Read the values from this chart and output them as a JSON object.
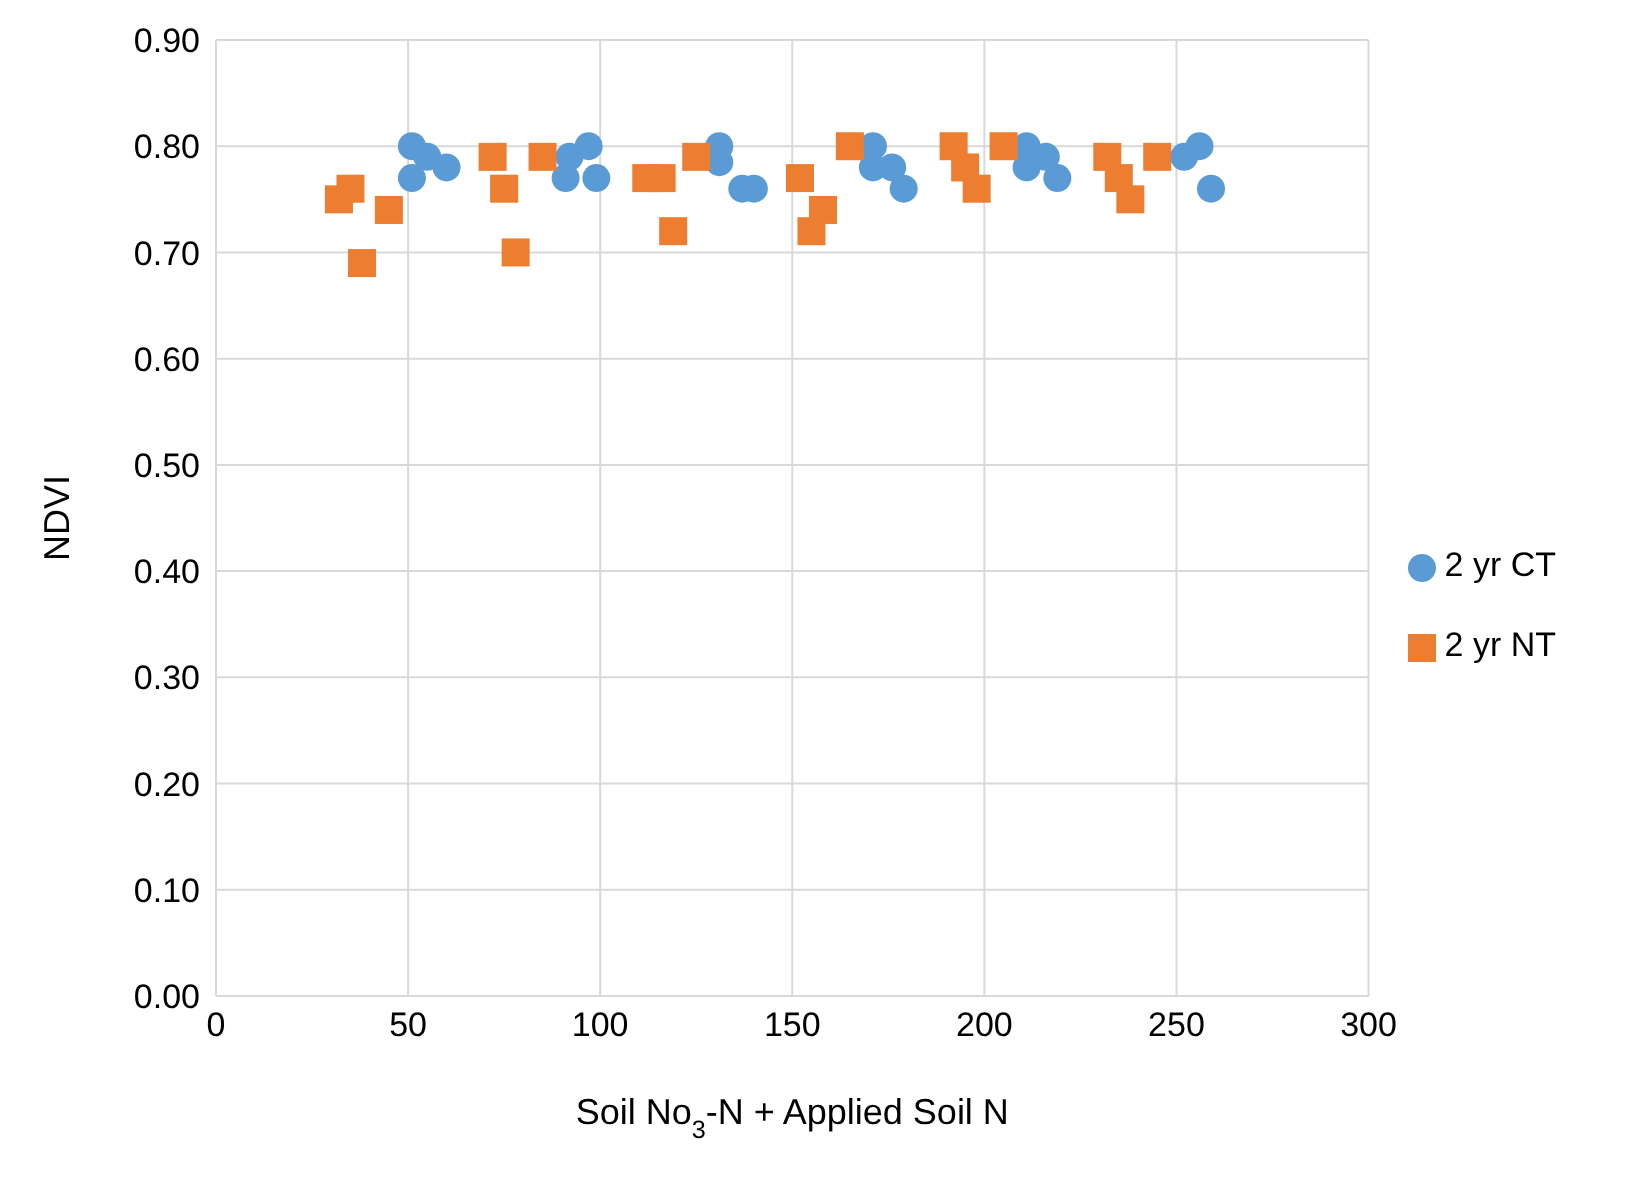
{
  "chart_data": {
    "type": "scatter",
    "xlabel": "Soil No$_{3}$-N + Applied Soil N",
    "ylabel": "NDVI",
    "xlim": [
      0,
      300
    ],
    "xticks": [
      0,
      50,
      100,
      150,
      200,
      250,
      300
    ],
    "ylim": [
      0,
      0.9
    ],
    "yticks": [
      {
        "value": 0,
        "label": "0.00"
      },
      {
        "value": 0.1,
        "label": "0.10"
      },
      {
        "value": 0.2,
        "label": "0.20"
      },
      {
        "value": 0.3,
        "label": "0.30"
      },
      {
        "value": 0.4,
        "label": "0.40"
      },
      {
        "value": 0.5,
        "label": "0.50"
      },
      {
        "value": 0.6,
        "label": "0.60"
      },
      {
        "value": 0.7,
        "label": "0.70"
      },
      {
        "value": 0.8,
        "label": "0.80"
      },
      {
        "value": 0.9,
        "label": "0.90"
      }
    ],
    "grid": true,
    "legend": "right",
    "series": [
      {
        "name": "2 yr CT",
        "color": "#5b9bd5",
        "marker": "circle",
        "x": [
          51,
          51,
          55,
          60,
          91,
          92,
          97,
          99,
          131,
          131,
          137,
          140,
          171,
          171,
          176,
          179,
          211,
          211,
          216,
          219,
          252,
          256,
          259
        ],
        "values": [
          0.8,
          0.77,
          0.79,
          0.78,
          0.77,
          0.79,
          0.8,
          0.77,
          0.8,
          0.785,
          0.76,
          0.76,
          0.8,
          0.78,
          0.78,
          0.76,
          0.8,
          0.78,
          0.79,
          0.77,
          0.79,
          0.8,
          0.76
        ]
      },
      {
        "name": "2 yr NT",
        "color": "#ed7d31",
        "marker": "square",
        "x": [
          32,
          35,
          38,
          45,
          72,
          75,
          78,
          85,
          112,
          116,
          119,
          125,
          152,
          155,
          158,
          165,
          192,
          195,
          198,
          205,
          232,
          235,
          238,
          245
        ],
        "values": [
          0.75,
          0.76,
          0.69,
          0.74,
          0.79,
          0.76,
          0.7,
          0.79,
          0.77,
          0.77,
          0.72,
          0.79,
          0.77,
          0.72,
          0.74,
          0.8,
          0.8,
          0.78,
          0.76,
          0.8,
          0.79,
          0.77,
          0.75,
          0.79
        ]
      }
    ]
  }
}
